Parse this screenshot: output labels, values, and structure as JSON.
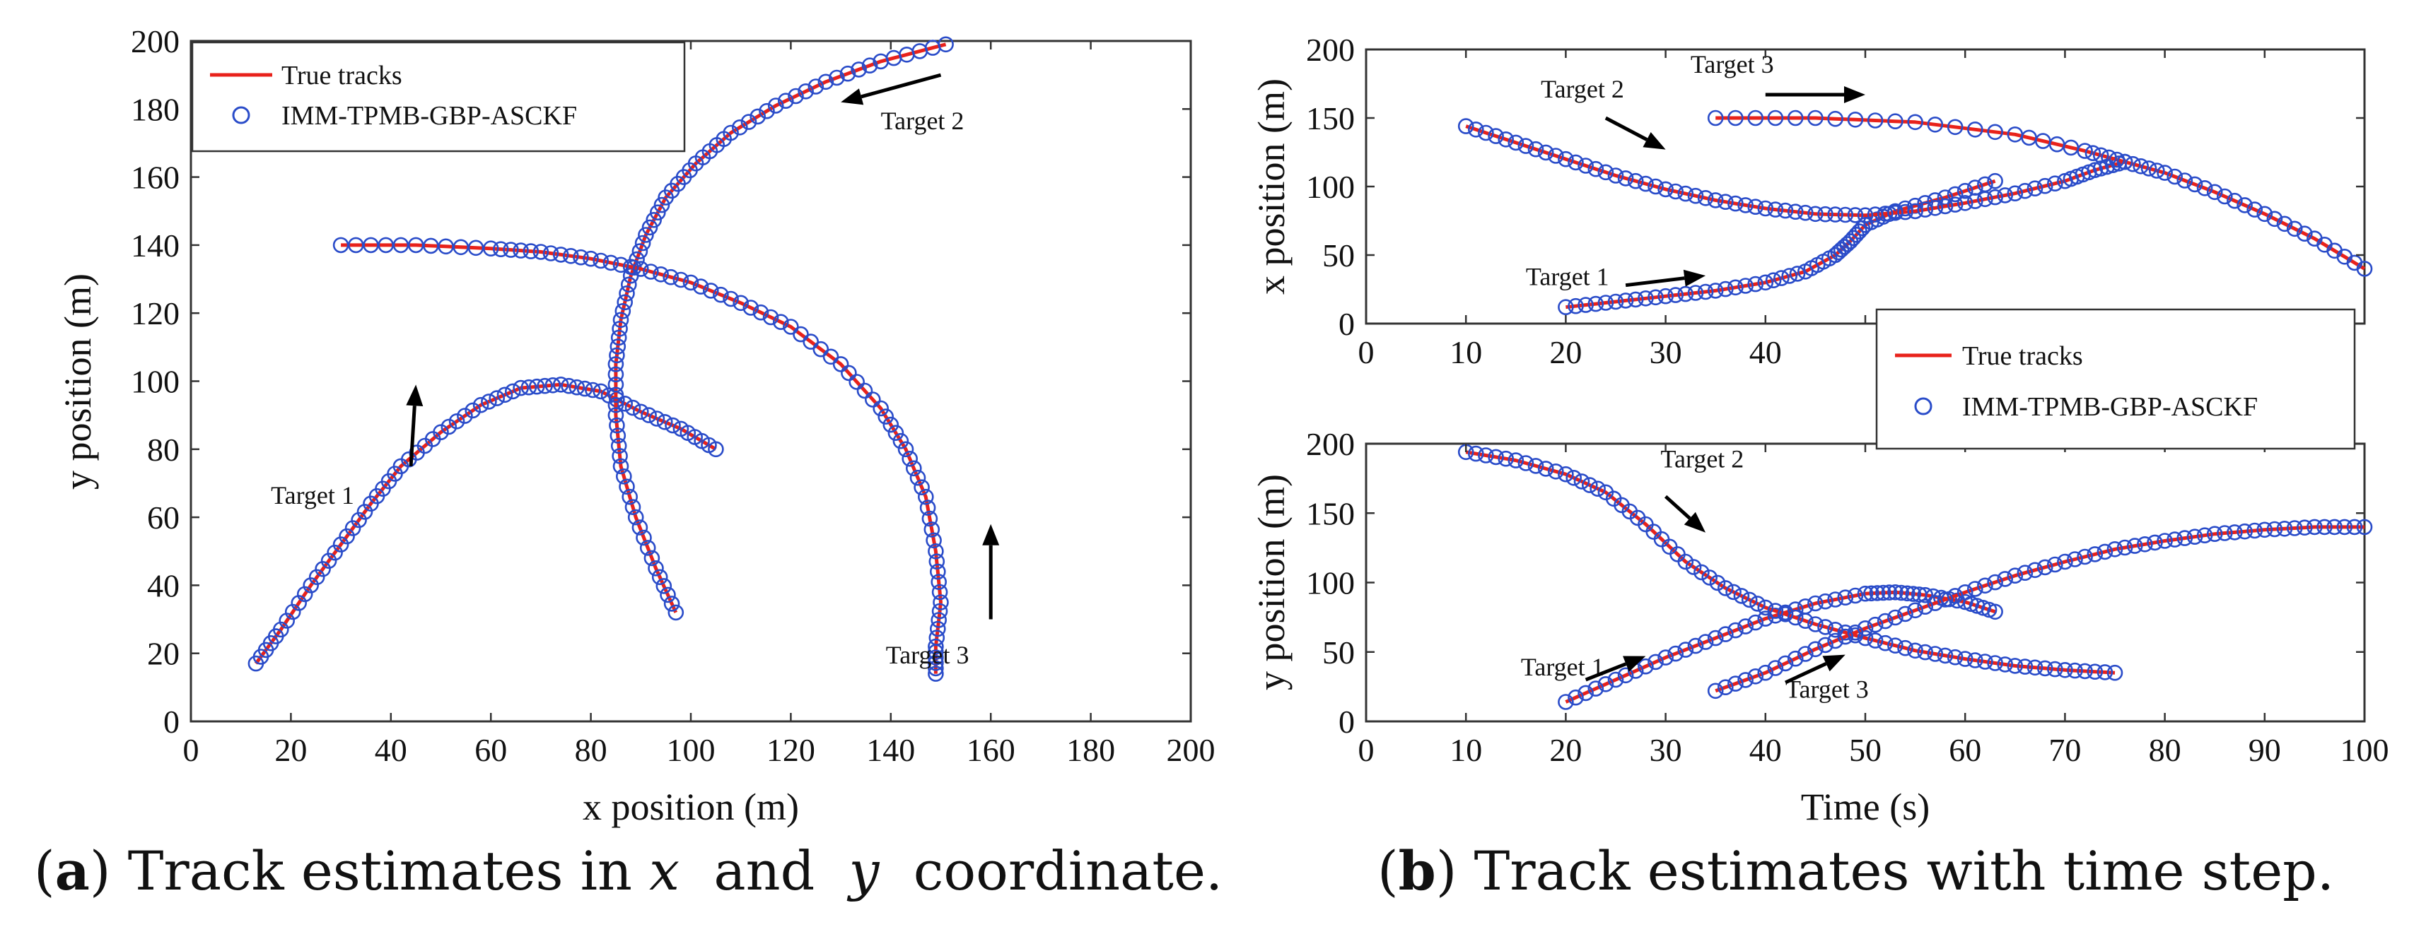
{
  "colors": {
    "true_line": "#e8221b",
    "marker": "#2a4cc9",
    "axes": "#333333",
    "arrow": "#000000"
  },
  "captions": {
    "a": {
      "open": "(",
      "letter": "a",
      "close": ")",
      "text1": " Track estimates in ",
      "x": "x",
      "and": "  and  ",
      "y": "y",
      "text2": "  coordinate."
    },
    "b": {
      "open": "(",
      "letter": "b",
      "close": ")",
      "text": " Track estimates with time step."
    }
  },
  "chart_data": [
    {
      "id": "a",
      "type": "line",
      "xlabel": "x position (m)",
      "ylabel": "y position (m)",
      "xlim": [
        0,
        200
      ],
      "ylim": [
        0,
        200
      ],
      "xticks": [
        0,
        20,
        40,
        60,
        80,
        100,
        120,
        140,
        160,
        180,
        200
      ],
      "yticks": [
        0,
        20,
        40,
        60,
        80,
        100,
        120,
        140,
        160,
        180,
        200
      ],
      "legend": {
        "position": "top-left",
        "entries": [
          "True tracks",
          "IMM-TPMB-GBP-ASCKF"
        ]
      },
      "series": [
        {
          "name": "Target 1",
          "points": [
            [
              13,
              17
            ],
            [
              18,
              27
            ],
            [
              24,
              40
            ],
            [
              30,
              52
            ],
            [
              36,
              64
            ],
            [
              42,
              75
            ],
            [
              50,
              85
            ],
            [
              58,
              93
            ],
            [
              66,
              98
            ],
            [
              74,
              99
            ],
            [
              82,
              97
            ],
            [
              90,
              91
            ],
            [
              98,
              86
            ],
            [
              105,
              80
            ]
          ]
        },
        {
          "name": "Target 2",
          "points": [
            [
              97,
              32
            ],
            [
              93,
              45
            ],
            [
              89,
              60
            ],
            [
              86,
              75
            ],
            [
              85,
              90
            ],
            [
              85,
              105
            ],
            [
              86,
              118
            ],
            [
              88,
              131
            ],
            [
              91,
              143
            ],
            [
              95,
              154
            ],
            [
              101,
              164
            ],
            [
              108,
              173
            ],
            [
              117,
              181
            ],
            [
              127,
              188
            ],
            [
              138,
              194
            ],
            [
              151,
              199
            ]
          ]
        },
        {
          "name": "Target 3",
          "points": [
            [
              30,
              140
            ],
            [
              45,
              140
            ],
            [
              60,
              139
            ],
            [
              70,
              138
            ],
            [
              80,
              136
            ],
            [
              90,
              133
            ],
            [
              100,
              129
            ],
            [
              110,
              123
            ],
            [
              120,
              116
            ],
            [
              130,
              105
            ],
            [
              138,
              92
            ],
            [
              143,
              80
            ],
            [
              147,
              66
            ],
            [
              149,
              50
            ],
            [
              150,
              35
            ],
            [
              149,
              22
            ],
            [
              149,
              14
            ]
          ]
        }
      ],
      "annotations": [
        {
          "text": "Target 1",
          "label_at": [
            16,
            64
          ],
          "arrow_from": [
            44,
            75
          ],
          "arrow_to": [
            45,
            99
          ]
        },
        {
          "text": "Target 2",
          "label_at": [
            138,
            174
          ],
          "arrow_from": [
            150,
            190
          ],
          "arrow_to": [
            130,
            182
          ]
        },
        {
          "text": "Target 3",
          "label_at": [
            139,
            17
          ],
          "arrow_from": [
            160,
            30
          ],
          "arrow_to": [
            160,
            58
          ]
        }
      ]
    },
    {
      "id": "b1",
      "type": "line",
      "xlabel": "",
      "ylabel": "x position (m)",
      "xlim": [
        0,
        100
      ],
      "ylim": [
        0,
        200
      ],
      "xticks": [
        0,
        10,
        20,
        30,
        40,
        50,
        60,
        70,
        80,
        90,
        100
      ],
      "xtick_labels": [
        "0",
        "10",
        "20",
        "30",
        "40",
        "",
        "",
        "",
        "",
        "",
        ""
      ],
      "yticks": [
        0,
        50,
        100,
        150,
        200
      ],
      "series": [
        {
          "name": "Target 1",
          "points": [
            [
              20,
              12
            ],
            [
              25,
              16
            ],
            [
              30,
              20
            ],
            [
              35,
              24
            ],
            [
              40,
              30
            ],
            [
              44,
              38
            ],
            [
              47,
              50
            ],
            [
              48.5,
              60
            ],
            [
              50,
              72
            ],
            [
              53,
              82
            ],
            [
              58,
              92
            ],
            [
              63,
              104
            ]
          ]
        },
        {
          "name": "Target 2",
          "points": [
            [
              10,
              144
            ],
            [
              15,
              132
            ],
            [
              20,
              120
            ],
            [
              25,
              108
            ],
            [
              30,
              98
            ],
            [
              35,
              90
            ],
            [
              40,
              84
            ],
            [
              45,
              80
            ],
            [
              50,
              79
            ],
            [
              55,
              82
            ],
            [
              60,
              88
            ],
            [
              65,
              95
            ],
            [
              70,
              104
            ],
            [
              73,
              112
            ],
            [
              76,
              118
            ]
          ]
        },
        {
          "name": "Target 3",
          "points": [
            [
              35,
              150
            ],
            [
              45,
              150
            ],
            [
              55,
              147
            ],
            [
              65,
              138
            ],
            [
              72,
              126
            ],
            [
              76,
              118
            ],
            [
              80,
              110
            ],
            [
              85,
              96
            ],
            [
              90,
              80
            ],
            [
              95,
              62
            ],
            [
              100,
              40
            ]
          ]
        }
      ],
      "annotations": [
        {
          "text": "Target 3",
          "label_at": [
            32.5,
            183
          ],
          "arrow_from": [
            40,
            167
          ],
          "arrow_to": [
            50,
            167
          ]
        },
        {
          "text": "Target 2",
          "label_at": [
            17.5,
            165
          ],
          "arrow_from": [
            24,
            150
          ],
          "arrow_to": [
            30,
            127
          ]
        },
        {
          "text": "Target 1",
          "label_at": [
            16,
            28
          ],
          "arrow_from": [
            26,
            28
          ],
          "arrow_to": [
            34,
            35
          ]
        }
      ]
    },
    {
      "id": "b2",
      "type": "line",
      "xlabel": "Time (s)",
      "ylabel": "y position (m)",
      "xlim": [
        0,
        100
      ],
      "ylim": [
        0,
        200
      ],
      "xticks": [
        0,
        10,
        20,
        30,
        40,
        50,
        60,
        70,
        80,
        90,
        100
      ],
      "yticks": [
        0,
        50,
        100,
        150,
        200
      ],
      "legend": {
        "position": "top-right of lower panel, overlapping upper panel",
        "entries": [
          "True tracks",
          "IMM-TPMB-GBP-ASCKF"
        ]
      },
      "series": [
        {
          "name": "Target 1",
          "points": [
            [
              20,
              14
            ],
            [
              25,
              30
            ],
            [
              30,
              46
            ],
            [
              35,
              60
            ],
            [
              40,
              74
            ],
            [
              45,
              85
            ],
            [
              50,
              92
            ],
            [
              53,
              93
            ],
            [
              56,
              91
            ],
            [
              60,
              86
            ],
            [
              63,
              79
            ]
          ]
        },
        {
          "name": "Target 2",
          "points": [
            [
              10,
              194
            ],
            [
              15,
              188
            ],
            [
              20,
              178
            ],
            [
              24,
              165
            ],
            [
              28,
              142
            ],
            [
              32,
              115
            ],
            [
              36,
              96
            ],
            [
              40,
              82
            ],
            [
              45,
              70
            ],
            [
              50,
              60
            ],
            [
              55,
              51
            ],
            [
              60,
              45
            ],
            [
              65,
              40
            ],
            [
              70,
              37
            ],
            [
              75,
              35
            ]
          ]
        },
        {
          "name": "Target 3",
          "points": [
            [
              35,
              22
            ],
            [
              40,
              35
            ],
            [
              45,
              52
            ],
            [
              50,
              67
            ],
            [
              55,
              80
            ],
            [
              60,
              93
            ],
            [
              65,
              105
            ],
            [
              70,
              115
            ],
            [
              75,
              124
            ],
            [
              80,
              130
            ],
            [
              85,
              135
            ],
            [
              90,
              138
            ],
            [
              95,
              140
            ],
            [
              100,
              140
            ]
          ]
        }
      ],
      "annotations": [
        {
          "text": "Target 2",
          "label_at": [
            29.5,
            183
          ],
          "arrow_from": [
            30,
            162
          ],
          "arrow_to": [
            34,
            136
          ]
        },
        {
          "text": "Target 1",
          "label_at": [
            15.5,
            33
          ],
          "arrow_from": [
            22,
            30
          ],
          "arrow_to": [
            28,
            47
          ]
        },
        {
          "text": "Target 3",
          "label_at": [
            42,
            17
          ],
          "arrow_from": [
            42,
            28
          ],
          "arrow_to": [
            48,
            48
          ]
        }
      ]
    }
  ]
}
